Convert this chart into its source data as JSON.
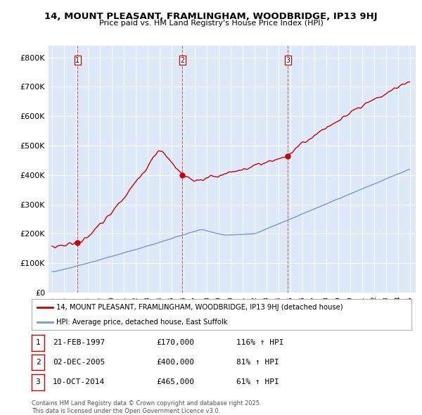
{
  "title": "14, MOUNT PLEASANT, FRAMLINGHAM, WOODBRIDGE, IP13 9HJ",
  "subtitle": "Price paid vs. HM Land Registry's House Price Index (HPI)",
  "bg_color": "#dde8f8",
  "red_color": "#cc0000",
  "blue_color": "#7799cc",
  "sale_dates": [
    1997.13,
    2005.92,
    2014.78
  ],
  "sale_prices": [
    170000,
    400000,
    465000
  ],
  "sale_labels": [
    "1",
    "2",
    "3"
  ],
  "legend_line1": "14, MOUNT PLEASANT, FRAMLINGHAM, WOODBRIDGE, IP13 9HJ (detached house)",
  "legend_line2": "HPI: Average price, detached house, East Suffolk",
  "table_rows": [
    [
      "1",
      "21-FEB-1997",
      "£170,000",
      "116% ↑ HPI"
    ],
    [
      "2",
      "02-DEC-2005",
      "£400,000",
      "81% ↑ HPI"
    ],
    [
      "3",
      "10-OCT-2014",
      "£465,000",
      "61% ↑ HPI"
    ]
  ],
  "footer": "Contains HM Land Registry data © Crown copyright and database right 2025.\nThis data is licensed under the Open Government Licence v3.0.",
  "ylim": [
    0,
    840000
  ],
  "yticks": [
    0,
    100000,
    200000,
    300000,
    400000,
    500000,
    600000,
    700000,
    800000
  ],
  "ytick_labels": [
    "£0",
    "£100K",
    "£200K",
    "£300K",
    "£400K",
    "£500K",
    "£600K",
    "£700K",
    "£800K"
  ]
}
